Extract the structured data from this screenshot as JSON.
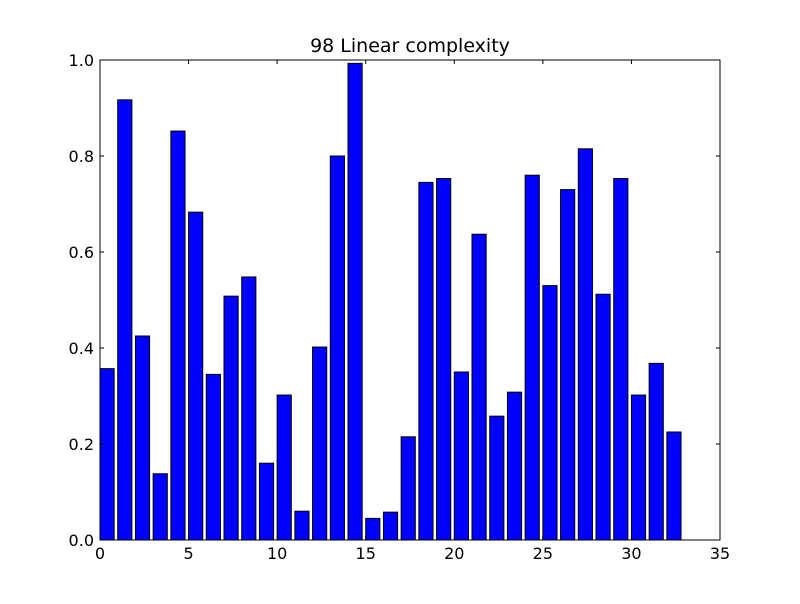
{
  "chart_data": {
    "type": "bar",
    "title": "98 Linear complexity",
    "xlabel": "",
    "ylabel": "",
    "x": [
      0,
      1,
      2,
      3,
      4,
      5,
      6,
      7,
      8,
      9,
      10,
      11,
      12,
      13,
      14,
      15,
      16,
      17,
      18,
      19,
      20,
      21,
      22,
      23,
      24,
      25,
      26,
      27,
      28,
      29,
      30,
      31,
      32
    ],
    "values": [
      0.357,
      0.917,
      0.425,
      0.138,
      0.852,
      0.683,
      0.345,
      0.508,
      0.548,
      0.16,
      0.302,
      0.06,
      0.402,
      0.8,
      0.993,
      0.045,
      0.058,
      0.215,
      0.745,
      0.753,
      0.35,
      0.637,
      0.258,
      0.308,
      0.76,
      0.53,
      0.73,
      0.815,
      0.512,
      0.753,
      0.302,
      0.368,
      0.225
    ],
    "bar_width": 0.8,
    "xlim": [
      0,
      35
    ],
    "ylim": [
      0,
      1.0
    ],
    "xticks": [
      0,
      5,
      10,
      15,
      20,
      25,
      30,
      35
    ],
    "xtick_labels": [
      "0",
      "5",
      "10",
      "15",
      "20",
      "25",
      "30",
      "35"
    ],
    "yticks": [
      0.0,
      0.2,
      0.4,
      0.6,
      0.8,
      1.0
    ],
    "ytick_labels": [
      "0.0",
      "0.2",
      "0.4",
      "0.6",
      "0.8",
      "1.0"
    ],
    "bar_color": "#0000ff",
    "edge_color": "#000000",
    "grid": false,
    "legend": "none"
  }
}
